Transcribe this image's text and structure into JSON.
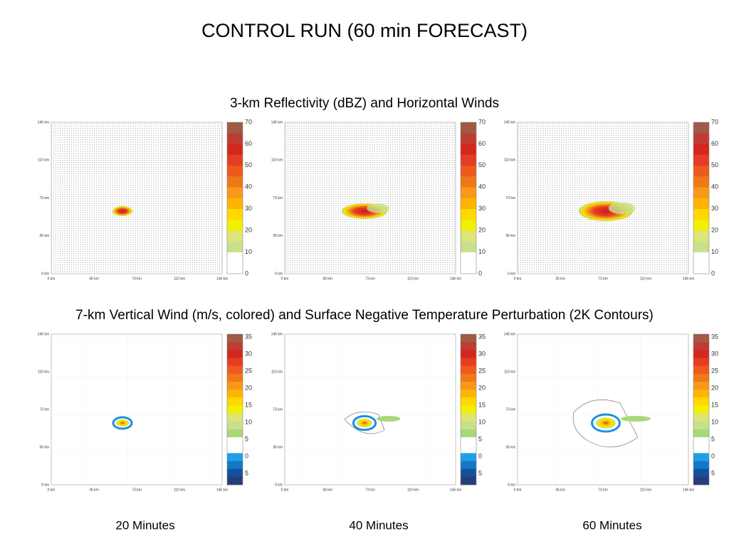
{
  "title": "CONTROL RUN (60 min FORECAST)",
  "row1_title": "3-km Reflectivity (dBZ) and Horizontal Winds",
  "row2_title": "7-km Vertical Wind (m/s, colored) and Surface Negative Temperature Perturbation (2K Contours)",
  "axis_ticks": [
    "0 km",
    "36 km",
    "73 km",
    "110 km",
    "146 km"
  ],
  "reflectivity_colorbar": [
    "0",
    "10",
    "20",
    "30",
    "40",
    "50",
    "60",
    "70"
  ],
  "wind_colorbar": [
    "35",
    "30",
    "25",
    "20",
    "15",
    "10",
    "5",
    "0",
    "5"
  ],
  "captions": [
    "20 Minutes",
    "40 Minutes",
    "60 Minutes"
  ]
}
